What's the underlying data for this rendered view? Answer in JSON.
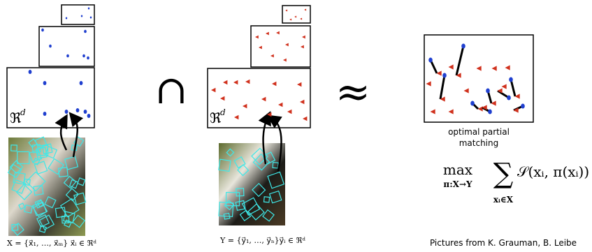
{
  "left": {
    "space_symbol": "ℜ",
    "space_exponent": "d",
    "set_formula": "X = {x⃗₁, …, x⃗ₘ}  x⃗ᵢ ∈ ℜᵈ"
  },
  "operators": [
    "∩",
    "≈"
  ],
  "right": {
    "space_symbol": "ℜ",
    "space_exponent": "d",
    "set_formula": "Y = {y⃗₁, …, y⃗ₙ}y⃗ᵢ ∈ ℜᵈ"
  },
  "matching": {
    "caption_line1": "optimal partial",
    "caption_line2": "matching",
    "max_op": "max",
    "max_sub": "π:X→Y",
    "sum_op": "∑",
    "sum_sub": "xᵢ∈X",
    "term": "𝒮(xᵢ, π(xᵢ))"
  },
  "credit": "Pictures from K. Grauman, B. Leibe"
}
